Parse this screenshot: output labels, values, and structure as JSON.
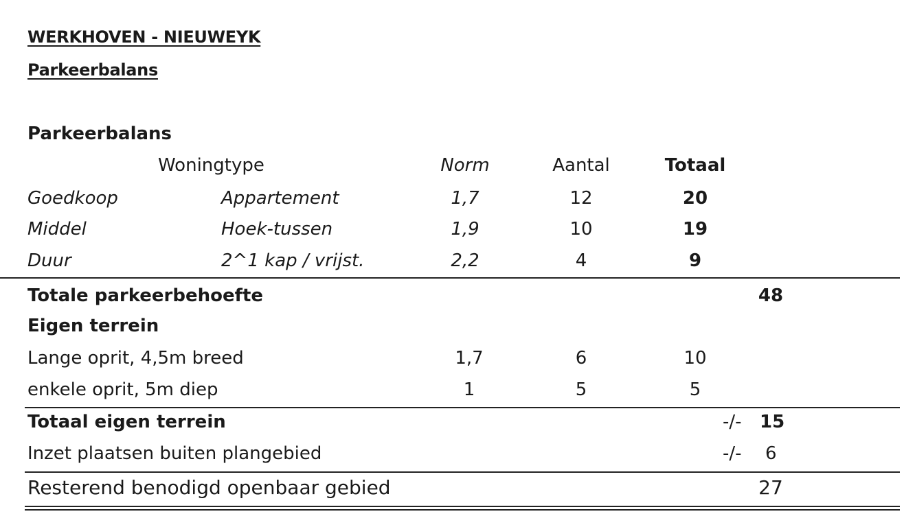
{
  "title": "WERKHOVEN - NIEUWEYK",
  "subtitle": "Parkeerbalans",
  "section_heading": "Parkeerbalans",
  "headers": {
    "woningtype": "Woningtype",
    "norm": "Norm",
    "aantal": "Aantal",
    "totaal": "Totaal"
  },
  "housing_rows": [
    {
      "category": "Goedkoop",
      "type": "Appartement",
      "norm": "1,7",
      "aantal": "12",
      "totaal": "20"
    },
    {
      "category": "Middel",
      "type": "Hoek-tussen",
      "norm": "1,9",
      "aantal": "10",
      "totaal": "19"
    },
    {
      "category": "Duur",
      "type": "2^1 kap / vrijst.",
      "norm": "2,2",
      "aantal": "4",
      "totaal": "9"
    }
  ],
  "totale_parkeerbehoefte": {
    "label": "Totale parkeerbehoefte",
    "value": "48"
  },
  "eigen_terrein_heading": "Eigen terrein",
  "eigen_terrein_rows": [
    {
      "label": "Lange oprit, 4,5m breed",
      "norm": "1,7",
      "aantal": "6",
      "totaal": "10"
    },
    {
      "label": "enkele oprit, 5m diep",
      "norm": "1",
      "aantal": "5",
      "totaal": "5"
    }
  ],
  "totaal_eigen_terrein": {
    "label": "Totaal eigen terrein",
    "sign": "-/-",
    "value": "15"
  },
  "inzet_buiten": {
    "label": "Inzet plaatsen buiten plangebied",
    "sign": "-/-",
    "value": "6"
  },
  "resterend": {
    "label": "Resterend benodigd openbaar gebied",
    "value": "27"
  }
}
